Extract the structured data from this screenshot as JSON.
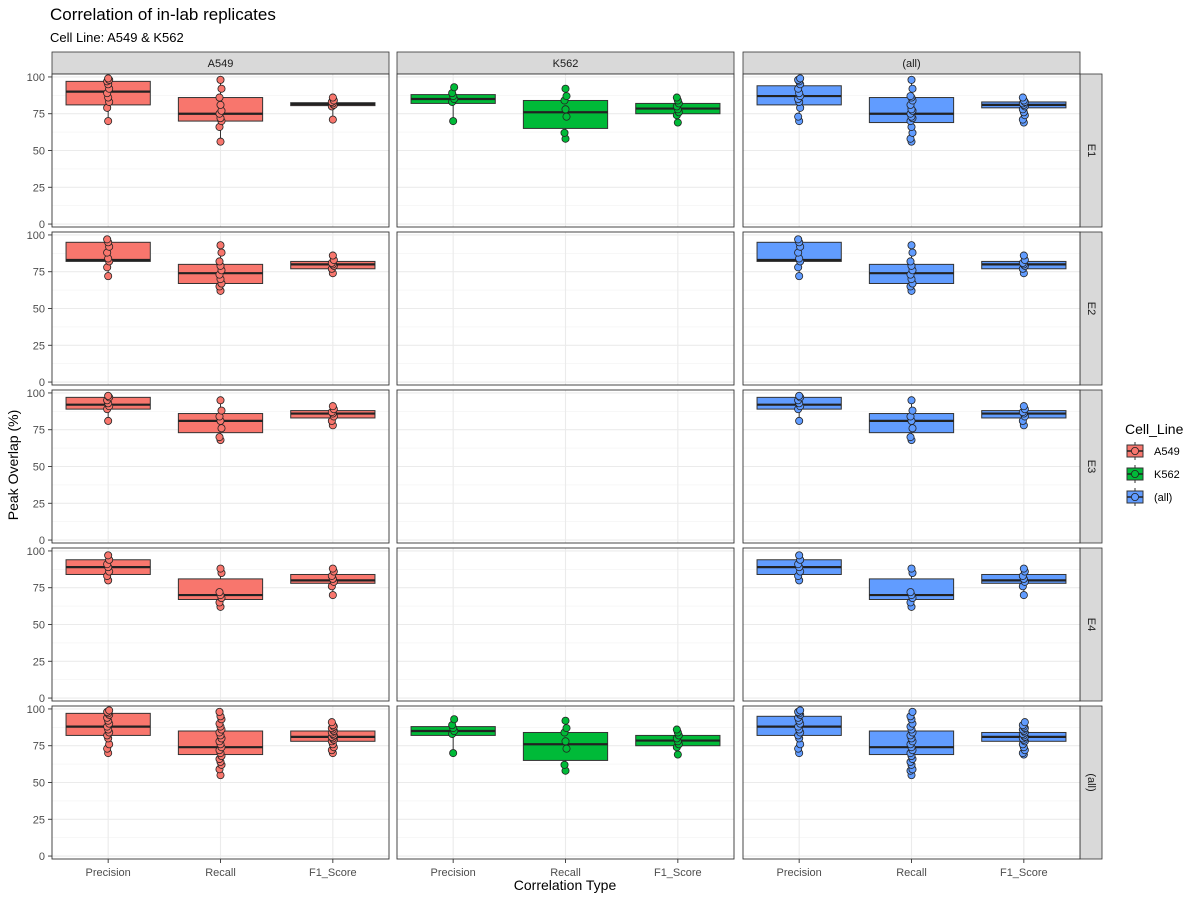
{
  "chart_data": {
    "type": "box",
    "title": "Correlation of in-lab replicates",
    "subtitle": "Cell Line: A549 & K562",
    "xlabel": "Correlation Type",
    "ylabel": "Peak Overlap (%)",
    "ylim": [
      -2,
      102
    ],
    "yticks": [
      0,
      25,
      50,
      75,
      100
    ],
    "categories": [
      "Precision",
      "Recall",
      "F1_Score"
    ],
    "grid": true,
    "legend": {
      "title": "Cell_Line",
      "position": "right",
      "items": [
        {
          "label": "A549",
          "color": "#F8766D"
        },
        {
          "label": "K562",
          "color": "#00BA38"
        },
        {
          "label": "(all)",
          "color": "#619CFF"
        }
      ]
    },
    "facet_cols": [
      {
        "label": "A549",
        "color": "#F8766D"
      },
      {
        "label": "K562",
        "color": "#00BA38"
      },
      {
        "label": "(all)",
        "color": "#619CFF"
      }
    ],
    "facet_rows": [
      "E1",
      "E2",
      "E3",
      "E4",
      "(all)"
    ],
    "panels": [
      {
        "col": 0,
        "row": 0,
        "boxes": [
          {
            "category": "Precision",
            "q1": 81,
            "median": 90,
            "q3": 97,
            "min": 70,
            "max": 99,
            "points": [
              70,
              79,
              83,
              86,
              89,
              92,
              95,
              97,
              98,
              99
            ]
          },
          {
            "category": "Recall",
            "q1": 70,
            "median": 75,
            "q3": 86,
            "min": 56,
            "max": 98,
            "points": [
              56,
              66,
              70,
              72,
              75,
              77,
              81,
              86,
              92,
              98
            ]
          },
          {
            "category": "F1_Score",
            "q1": 80.5,
            "median": 81.5,
            "q3": 82.5,
            "min": 71,
            "max": 86,
            "points": [
              71,
              80,
              81,
              82,
              83,
              84,
              86
            ]
          }
        ]
      },
      {
        "col": 1,
        "row": 0,
        "boxes": [
          {
            "category": "Precision",
            "q1": 82,
            "median": 85,
            "q3": 88,
            "min": 70,
            "max": 93,
            "points": [
              70,
              83,
              85,
              87,
              89,
              93
            ]
          },
          {
            "category": "Recall",
            "q1": 65,
            "median": 76,
            "q3": 84,
            "min": 58,
            "max": 92,
            "points": [
              58,
              62,
              73,
              78,
              84,
              87,
              92
            ]
          },
          {
            "category": "F1_Score",
            "q1": 75,
            "median": 78.5,
            "q3": 82,
            "min": 69,
            "max": 86,
            "points": [
              69,
              74,
              76,
              78,
              80,
              82,
              84,
              86
            ]
          }
        ]
      },
      {
        "col": 2,
        "row": 0,
        "boxes": [
          {
            "category": "Precision",
            "q1": 81,
            "median": 87,
            "q3": 94,
            "min": 70,
            "max": 99,
            "points": [
              70,
              73,
              79,
              83,
              85,
              87,
              89,
              92,
              95,
              97,
              98,
              99
            ]
          },
          {
            "category": "Recall",
            "q1": 69,
            "median": 75,
            "q3": 86,
            "min": 56,
            "max": 98,
            "points": [
              56,
              58,
              62,
              66,
              70,
              72,
              73,
              75,
              77,
              78,
              81,
              84,
              86,
              87,
              92,
              98
            ]
          },
          {
            "category": "F1_Score",
            "q1": 79,
            "median": 81,
            "q3": 83,
            "min": 69,
            "max": 86,
            "points": [
              69,
              71,
              74,
              76,
              78,
              80,
              81,
              82,
              83,
              84,
              86
            ]
          }
        ]
      },
      {
        "col": 0,
        "row": 1,
        "boxes": [
          {
            "category": "Precision",
            "q1": 82,
            "median": 83,
            "q3": 95,
            "min": 72,
            "max": 97,
            "points": [
              72,
              78,
              82,
              84,
              88,
              92,
              95,
              97
            ]
          },
          {
            "category": "Recall",
            "q1": 67,
            "median": 74,
            "q3": 80,
            "min": 62,
            "max": 93,
            "points": [
              62,
              65,
              67,
              70,
              73,
              76,
              79,
              82,
              88,
              93
            ]
          },
          {
            "category": "F1_Score",
            "q1": 77,
            "median": 80,
            "q3": 82,
            "min": 74,
            "max": 86,
            "points": [
              74,
              77,
              79,
              80,
              81,
              83,
              86
            ]
          }
        ]
      },
      {
        "col": 2,
        "row": 1,
        "boxes": [
          {
            "category": "Precision",
            "q1": 82,
            "median": 83,
            "q3": 95,
            "min": 72,
            "max": 97,
            "points": [
              72,
              78,
              82,
              84,
              88,
              92,
              95,
              97
            ]
          },
          {
            "category": "Recall",
            "q1": 67,
            "median": 74,
            "q3": 80,
            "min": 62,
            "max": 93,
            "points": [
              62,
              65,
              67,
              70,
              73,
              76,
              79,
              82,
              88,
              93
            ]
          },
          {
            "category": "F1_Score",
            "q1": 77,
            "median": 80,
            "q3": 82,
            "min": 74,
            "max": 86,
            "points": [
              74,
              77,
              79,
              80,
              81,
              83,
              86
            ]
          }
        ]
      },
      {
        "col": 0,
        "row": 2,
        "boxes": [
          {
            "category": "Precision",
            "q1": 89,
            "median": 92,
            "q3": 97,
            "min": 81,
            "max": 98,
            "points": [
              81,
              89,
              91,
              93,
              95,
              97,
              98
            ]
          },
          {
            "category": "Recall",
            "q1": 73,
            "median": 81,
            "q3": 86,
            "min": 68,
            "max": 95,
            "points": [
              68,
              70,
              76,
              81,
              84,
              88,
              95
            ]
          },
          {
            "category": "F1_Score",
            "q1": 83,
            "median": 86,
            "q3": 88,
            "min": 78,
            "max": 91,
            "points": [
              78,
              81,
              84,
              86,
              87,
              89,
              91
            ]
          }
        ]
      },
      {
        "col": 2,
        "row": 2,
        "boxes": [
          {
            "category": "Precision",
            "q1": 89,
            "median": 92,
            "q3": 97,
            "min": 81,
            "max": 98,
            "points": [
              81,
              89,
              91,
              93,
              95,
              97,
              98
            ]
          },
          {
            "category": "Recall",
            "q1": 73,
            "median": 81,
            "q3": 86,
            "min": 68,
            "max": 95,
            "points": [
              68,
              70,
              76,
              81,
              84,
              88,
              95
            ]
          },
          {
            "category": "F1_Score",
            "q1": 83,
            "median": 86,
            "q3": 88,
            "min": 78,
            "max": 91,
            "points": [
              78,
              81,
              84,
              86,
              87,
              89,
              91
            ]
          }
        ]
      },
      {
        "col": 0,
        "row": 3,
        "boxes": [
          {
            "category": "Precision",
            "q1": 84,
            "median": 89,
            "q3": 94,
            "min": 80,
            "max": 97,
            "points": [
              80,
              83,
              86,
              89,
              91,
              94,
              97
            ]
          },
          {
            "category": "Recall",
            "q1": 67,
            "median": 70,
            "q3": 81,
            "min": 62,
            "max": 88,
            "points": [
              62,
              65,
              68,
              70,
              72,
              85,
              88
            ]
          },
          {
            "category": "F1_Score",
            "q1": 78,
            "median": 80,
            "q3": 84,
            "min": 70,
            "max": 88,
            "points": [
              70,
              76,
              79,
              81,
              83,
              86,
              88
            ]
          }
        ]
      },
      {
        "col": 2,
        "row": 3,
        "boxes": [
          {
            "category": "Precision",
            "q1": 84,
            "median": 89,
            "q3": 94,
            "min": 80,
            "max": 97,
            "points": [
              80,
              83,
              86,
              89,
              91,
              94,
              97
            ]
          },
          {
            "category": "Recall",
            "q1": 67,
            "median": 70,
            "q3": 81,
            "min": 62,
            "max": 88,
            "points": [
              62,
              65,
              68,
              70,
              72,
              85,
              88
            ]
          },
          {
            "category": "F1_Score",
            "q1": 78,
            "median": 80,
            "q3": 84,
            "min": 70,
            "max": 88,
            "points": [
              70,
              76,
              79,
              81,
              83,
              86,
              88
            ]
          }
        ]
      },
      {
        "col": 0,
        "row": 4,
        "boxes": [
          {
            "category": "Precision",
            "q1": 82,
            "median": 88,
            "q3": 97,
            "min": 70,
            "max": 99,
            "points": [
              70,
              73,
              76,
              80,
              82,
              84,
              86,
              88,
              90,
              92,
              94,
              96,
              97,
              98,
              99
            ]
          },
          {
            "category": "Recall",
            "q1": 69,
            "median": 74,
            "q3": 85,
            "min": 55,
            "max": 98,
            "points": [
              55,
              59,
              62,
              64,
              66,
              68,
              70,
              72,
              74,
              76,
              78,
              80,
              82,
              84,
              86,
              88,
              90,
              93,
              95,
              98
            ]
          },
          {
            "category": "F1_Score",
            "q1": 78,
            "median": 81,
            "q3": 85,
            "min": 70,
            "max": 91,
            "points": [
              70,
              72,
              74,
              76,
              78,
              79,
              80,
              81,
              82,
              83,
              84,
              85,
              86,
              87,
              88,
              89,
              91
            ]
          }
        ]
      },
      {
        "col": 1,
        "row": 4,
        "boxes": [
          {
            "category": "Precision",
            "q1": 82,
            "median": 85,
            "q3": 88,
            "min": 70,
            "max": 93,
            "points": [
              70,
              83,
              85,
              87,
              89,
              93
            ]
          },
          {
            "category": "Recall",
            "q1": 65,
            "median": 76,
            "q3": 84,
            "min": 58,
            "max": 92,
            "points": [
              58,
              62,
              73,
              78,
              84,
              87,
              92
            ]
          },
          {
            "category": "F1_Score",
            "q1": 75,
            "median": 78.5,
            "q3": 82,
            "min": 69,
            "max": 86,
            "points": [
              69,
              74,
              76,
              78,
              80,
              82,
              84,
              86
            ]
          }
        ]
      },
      {
        "col": 2,
        "row": 4,
        "boxes": [
          {
            "category": "Precision",
            "q1": 82,
            "median": 88,
            "q3": 95,
            "min": 70,
            "max": 99,
            "points": [
              70,
              73,
              76,
              80,
              82,
              84,
              86,
              88,
              90,
              92,
              94,
              96,
              97,
              98,
              99
            ]
          },
          {
            "category": "Recall",
            "q1": 69,
            "median": 74,
            "q3": 85,
            "min": 55,
            "max": 98,
            "points": [
              55,
              58,
              59,
              62,
              64,
              66,
              68,
              70,
              72,
              74,
              76,
              78,
              80,
              82,
              84,
              86,
              88,
              90,
              93,
              95,
              98
            ]
          },
          {
            "category": "F1_Score",
            "q1": 78,
            "median": 81,
            "q3": 84,
            "min": 69,
            "max": 91,
            "points": [
              69,
              70,
              72,
              74,
              76,
              78,
              79,
              80,
              81,
              82,
              83,
              84,
              85,
              86,
              87,
              88,
              89,
              91
            ]
          }
        ]
      }
    ]
  }
}
